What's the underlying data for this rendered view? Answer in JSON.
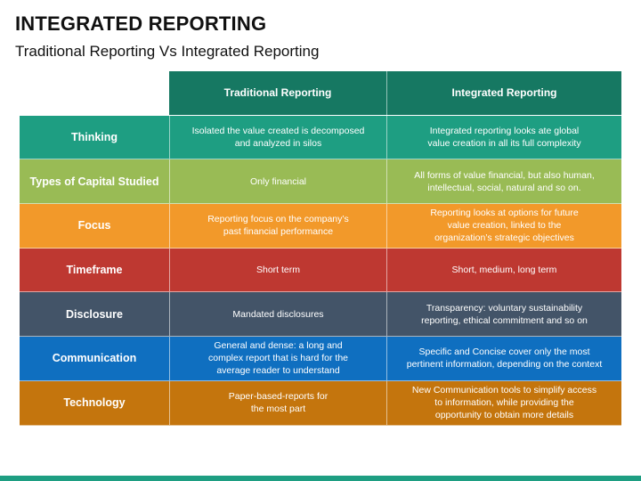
{
  "title": "INTEGRATED REPORTING",
  "subtitle": "Traditional Reporting Vs Integrated Reporting",
  "table": {
    "header_color": "#167862",
    "columns": [
      "",
      "Traditional Reporting",
      "Integrated Reporting"
    ],
    "rows": [
      {
        "label": "Thinking",
        "color": "#1e9e82",
        "traditional": "Isolated the value created is decomposed\nand analyzed in silos",
        "integrated": "Integrated reporting looks ate global\nvalue creation in all its full complexity"
      },
      {
        "label": "Types of Capital Studied",
        "color": "#99bb55",
        "traditional": "Only financial",
        "integrated": "All forms of value financial, but also human,\nintellectual, social, natural and so on."
      },
      {
        "label": "Focus",
        "color": "#f2992a",
        "traditional": "Reporting focus on the company’s\npast financial performance",
        "integrated": "Reporting looks at options for future\nvalue creation, linked to the\norganization’s strategic objectives"
      },
      {
        "label": "Timeframe",
        "color": "#be3831",
        "traditional": "Short term",
        "integrated": "Short, medium, long term"
      },
      {
        "label": "Disclosure",
        "color": "#435468",
        "traditional": "Mandated disclosures",
        "integrated": "Transparency: voluntary sustainability\nreporting, ethical commitment and so on"
      },
      {
        "label": "Communication",
        "color": "#0f6fc0",
        "traditional": "General and dense: a long and\ncomplex report that is hard for the\naverage reader to understand",
        "integrated": "Specific and Concise cover only the most\npertinent information, depending on the context"
      },
      {
        "label": "Technology",
        "color": "#c4750d",
        "traditional": "Paper-based-reports for\nthe most part",
        "integrated": "New Communication tools to simplify access\nto information, while providing the\nopportunity to obtain more details"
      }
    ]
  },
  "footer_bar_color": "#1e9e82"
}
